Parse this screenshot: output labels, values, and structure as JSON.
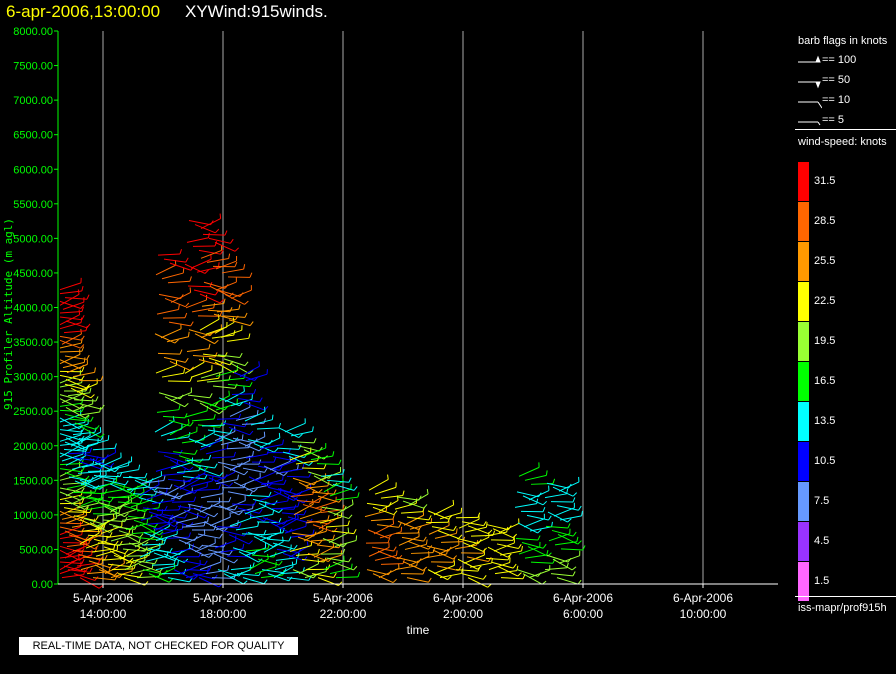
{
  "title": {
    "date": "6-apr-2006,13:00:00",
    "main": "XYWind:915winds."
  },
  "notice": "REAL-TIME DATA, NOT CHECKED FOR QUALITY",
  "legend": {
    "barb_title": "barb flags in knots",
    "barb_items": [
      "== 100",
      "== 50",
      "== 10",
      "== 5"
    ],
    "speed_title": "wind-speed: knots",
    "scale": [
      {
        "label": "31.5",
        "color": "#ff0000"
      },
      {
        "label": "28.5",
        "color": "#ff6600"
      },
      {
        "label": "25.5",
        "color": "#ff9900"
      },
      {
        "label": "22.5",
        "color": "#ffff00"
      },
      {
        "label": "19.5",
        "color": "#99ff33"
      },
      {
        "label": "16.5",
        "color": "#00ff00"
      },
      {
        "label": "13.5",
        "color": "#00ffff"
      },
      {
        "label": "10.5",
        "color": "#0000ff"
      },
      {
        "label": "7.5",
        "color": "#6699ff"
      },
      {
        "label": "4.5",
        "color": "#9933ff"
      },
      {
        "label": "1.5",
        "color": "#ff66ff"
      }
    ],
    "source": "iss-mapr/prof915h"
  },
  "chart_data": {
    "type": "scatter",
    "title": "XYWind:915winds.",
    "xlabel": "time",
    "ylabel": "915 Profiler Altitude (m agl)",
    "ylim": [
      0,
      8000
    ],
    "xlim_hours_from_1400": [
      -1.5,
      22.5
    ],
    "yticks": [
      "0.00",
      "500.00",
      "1000.00",
      "1500.00",
      "2000.00",
      "2500.00",
      "3000.00",
      "3500.00",
      "4000.00",
      "4500.00",
      "5000.00",
      "5500.00",
      "6000.00",
      "6500.00",
      "7000.00",
      "7500.00",
      "8000.00"
    ],
    "xticks": [
      {
        "date": "5-Apr-2006",
        "time": "14:00:00"
      },
      {
        "date": "5-Apr-2006",
        "time": "18:00:00"
      },
      {
        "date": "5-Apr-2006",
        "time": "22:00:00"
      },
      {
        "date": "6-Apr-2006",
        "time": "2:00:00"
      },
      {
        "date": "6-Apr-2006",
        "time": "6:00:00"
      },
      {
        "date": "6-Apr-2006",
        "time": "10:00:00"
      }
    ],
    "grid": "vertical",
    "profiles": [
      {
        "time": "5-Apr-2006 12:30",
        "top": 4200,
        "speeds": [
          33,
          33,
          32,
          30,
          28,
          25,
          22,
          20,
          18,
          16,
          14,
          13,
          12,
          13,
          15,
          18,
          20,
          22,
          24,
          26,
          28,
          30,
          31,
          32,
          33
        ]
      },
      {
        "time": "5-Apr-2006 13:00",
        "top": 3000,
        "speeds": [
          30,
          31,
          29,
          27,
          24,
          21,
          18,
          16,
          14,
          12,
          11,
          12,
          14,
          16,
          18,
          20,
          22,
          24
        ]
      },
      {
        "time": "5-Apr-2006 13:30",
        "top": 2000,
        "speeds": [
          25,
          24,
          23,
          21,
          19,
          17,
          15,
          13,
          12,
          11,
          12
        ]
      },
      {
        "time": "5-Apr-2006 14:00",
        "top": 1700,
        "speeds": [
          24,
          23,
          22,
          21,
          20,
          18,
          16,
          14,
          13
        ]
      },
      {
        "time": "5-Apr-2006 14:30",
        "top": 1600,
        "speeds": [
          22,
          21,
          20,
          19,
          18,
          17,
          15,
          13
        ]
      },
      {
        "time": "5-Apr-2006 15:00",
        "top": 1500,
        "speeds": [
          20,
          19,
          18,
          17,
          16,
          15,
          14,
          12
        ]
      },
      {
        "time": "5-Apr-2006 15:30",
        "top": 1400,
        "speeds": [
          15,
          14,
          13,
          12,
          11,
          10,
          9,
          8
        ]
      },
      {
        "time": "5-Apr-2006 16:00",
        "top": 4700,
        "speeds": [
          14,
          12,
          10,
          9,
          8,
          9,
          11,
          14,
          17,
          20,
          23,
          25,
          26,
          27,
          28,
          29,
          30
        ]
      },
      {
        "time": "5-Apr-2006 16:30",
        "top": 2100,
        "speeds": [
          10,
          9,
          8,
          7,
          9,
          11,
          13,
          15,
          17
        ]
      },
      {
        "time": "5-Apr-2006 17:00",
        "top": 5200,
        "speeds": [
          9,
          8,
          7,
          8,
          10,
          12,
          14,
          17,
          20,
          22,
          24,
          26,
          28,
          30,
          31,
          32,
          33
        ]
      },
      {
        "time": "5-Apr-2006 17:30",
        "top": 5000,
        "speeds": [
          8,
          7,
          6,
          7,
          9,
          11,
          13,
          16,
          19,
          21,
          23,
          25,
          27,
          29,
          31
        ]
      },
      {
        "time": "5-Apr-2006 18:00",
        "top": 4500,
        "speeds": [
          12,
          11,
          9,
          8,
          7,
          6,
          7,
          9,
          12,
          15,
          18,
          21,
          24,
          27,
          29
        ]
      },
      {
        "time": "5-Apr-2006 18:30",
        "top": 3000,
        "speeds": [
          14,
          13,
          12,
          10,
          8,
          7,
          6,
          7,
          9,
          11
        ]
      },
      {
        "time": "5-Apr-2006 19:00",
        "top": 2300,
        "speeds": [
          16,
          15,
          14,
          13,
          12,
          11,
          10,
          12,
          14
        ]
      },
      {
        "time": "5-Apr-2006 19:30",
        "top": 1900,
        "speeds": [
          14,
          13,
          12,
          11,
          10,
          9,
          8,
          9
        ]
      },
      {
        "time": "5-Apr-2006 20:00",
        "top": 2200,
        "speeds": [
          12,
          11,
          10,
          9,
          10,
          11,
          12,
          14
        ]
      },
      {
        "time": "5-Apr-2006 20:30",
        "top": 2000,
        "speeds": [
          20,
          22,
          24,
          26,
          27,
          25,
          22,
          18
        ]
      },
      {
        "time": "5-Apr-2006 21:00",
        "top": 1800,
        "speeds": [
          22,
          24,
          26,
          28,
          27,
          24,
          20,
          16
        ]
      },
      {
        "time": "5-Apr-2006 21:30",
        "top": 1500,
        "speeds": [
          16,
          18,
          20,
          22,
          20,
          17,
          14
        ]
      },
      {
        "time": "5-Apr-2006 23:00",
        "top": 1300,
        "speeds": [
          26,
          27,
          28,
          27,
          25,
          23,
          21
        ]
      },
      {
        "time": "6-Apr-2006 00:00",
        "top": 1200,
        "speeds": [
          24,
          25,
          26,
          25,
          24,
          22,
          20
        ]
      },
      {
        "time": "6-Apr-2006 01:00",
        "top": 1000,
        "speeds": [
          23,
          24,
          25,
          24,
          23,
          22
        ]
      },
      {
        "time": "6-Apr-2006 02:00",
        "top": 900,
        "speeds": [
          22,
          23,
          24,
          23,
          22,
          21
        ]
      },
      {
        "time": "6-Apr-2006 03:00",
        "top": 800,
        "speeds": [
          21,
          22,
          23,
          22,
          21
        ]
      },
      {
        "time": "6-Apr-2006 04:00",
        "top": 1500,
        "speeds": [
          18,
          17,
          15,
          13,
          12,
          13,
          15
        ]
      },
      {
        "time": "6-Apr-2006 05:00",
        "top": 1400,
        "speeds": [
          20,
          19,
          17,
          15,
          13,
          12,
          14
        ]
      }
    ]
  }
}
